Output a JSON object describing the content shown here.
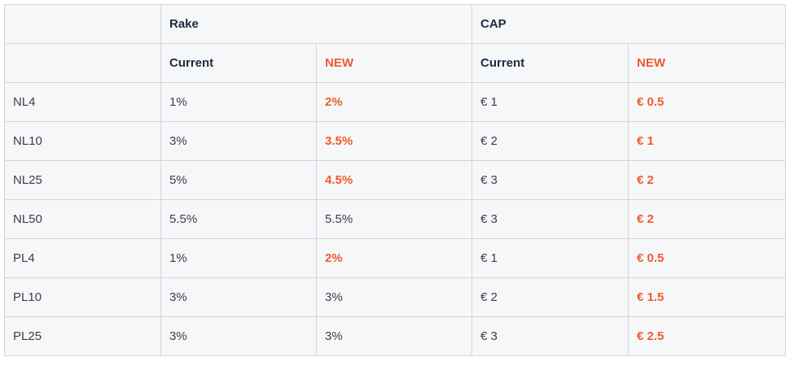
{
  "header": {
    "group_rake": "Rake",
    "group_cap": "CAP",
    "rake_current": "Current",
    "rake_new": "NEW",
    "cap_current": "Current",
    "cap_new": "NEW"
  },
  "colors": {
    "highlight": "#f05a2e",
    "header_text": "#1f2a3d",
    "cell_background": "#f6f7f9",
    "border": "#d3d5db"
  },
  "rows": [
    {
      "stake": "NL4",
      "rake_current": "1%",
      "rake_new": "2%",
      "rake_new_highlight": true,
      "cap_current": "€ 1",
      "cap_new": "€ 0.5",
      "cap_new_highlight": true
    },
    {
      "stake": "NL10",
      "rake_current": "3%",
      "rake_new": "3.5%",
      "rake_new_highlight": true,
      "cap_current": "€ 2",
      "cap_new": "€ 1",
      "cap_new_highlight": true
    },
    {
      "stake": "NL25",
      "rake_current": "5%",
      "rake_new": "4.5%",
      "rake_new_highlight": true,
      "cap_current": "€ 3",
      "cap_new": "€ 2",
      "cap_new_highlight": true
    },
    {
      "stake": "NL50",
      "rake_current": "5.5%",
      "rake_new": "5.5%",
      "rake_new_highlight": false,
      "cap_current": "€ 3",
      "cap_new": "€ 2",
      "cap_new_highlight": true
    },
    {
      "stake": "PL4",
      "rake_current": "1%",
      "rake_new": "2%",
      "rake_new_highlight": true,
      "cap_current": "€ 1",
      "cap_new": "€ 0.5",
      "cap_new_highlight": true
    },
    {
      "stake": "PL10",
      "rake_current": "3%",
      "rake_new": "3%",
      "rake_new_highlight": false,
      "cap_current": "€ 2",
      "cap_new": "€ 1.5",
      "cap_new_highlight": true
    },
    {
      "stake": "PL25",
      "rake_current": "3%",
      "rake_new": "3%",
      "rake_new_highlight": false,
      "cap_current": "€ 3",
      "cap_new": "€ 2.5",
      "cap_new_highlight": true
    }
  ]
}
